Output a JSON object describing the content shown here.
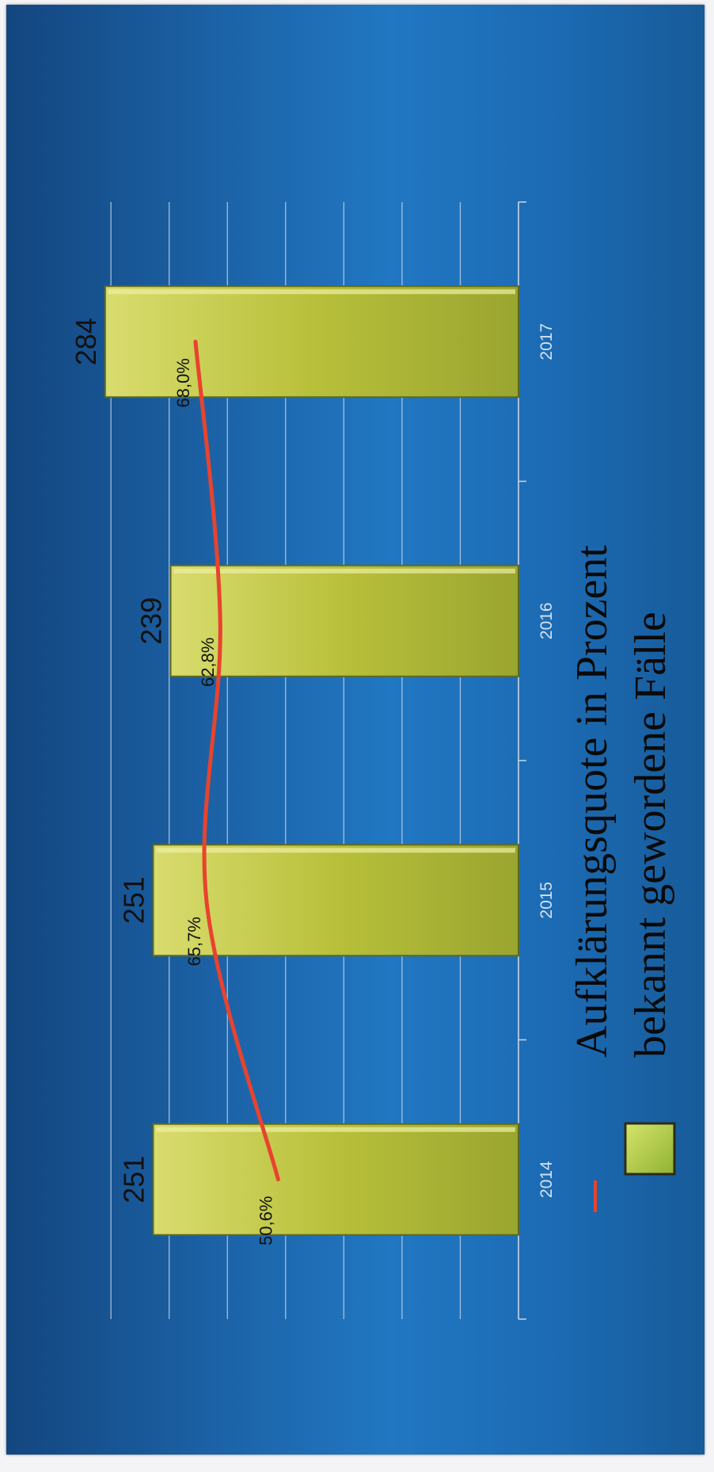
{
  "chart_data": {
    "type": "bar",
    "categories": [
      "2014",
      "2015",
      "2016",
      "2017"
    ],
    "series": [
      {
        "name": "bekannt gewordene Fälle",
        "kind": "bar",
        "color": "#b5bd36",
        "values": [
          251,
          251,
          239,
          284
        ],
        "labels": [
          "251",
          "251",
          "239",
          "284"
        ]
      },
      {
        "name": "Aufklärungsquote in Prozent",
        "kind": "line",
        "color": "#e8432e",
        "values": [
          50.6,
          65.7,
          62.8,
          68.0
        ],
        "labels": [
          "50,6%",
          "65,7%",
          "62,8%",
          "68,0%"
        ]
      }
    ],
    "ylim": [
      0,
      310
    ],
    "grid": true,
    "orientation": "rotated 90 degrees clockwise",
    "legend_position": "right"
  }
}
